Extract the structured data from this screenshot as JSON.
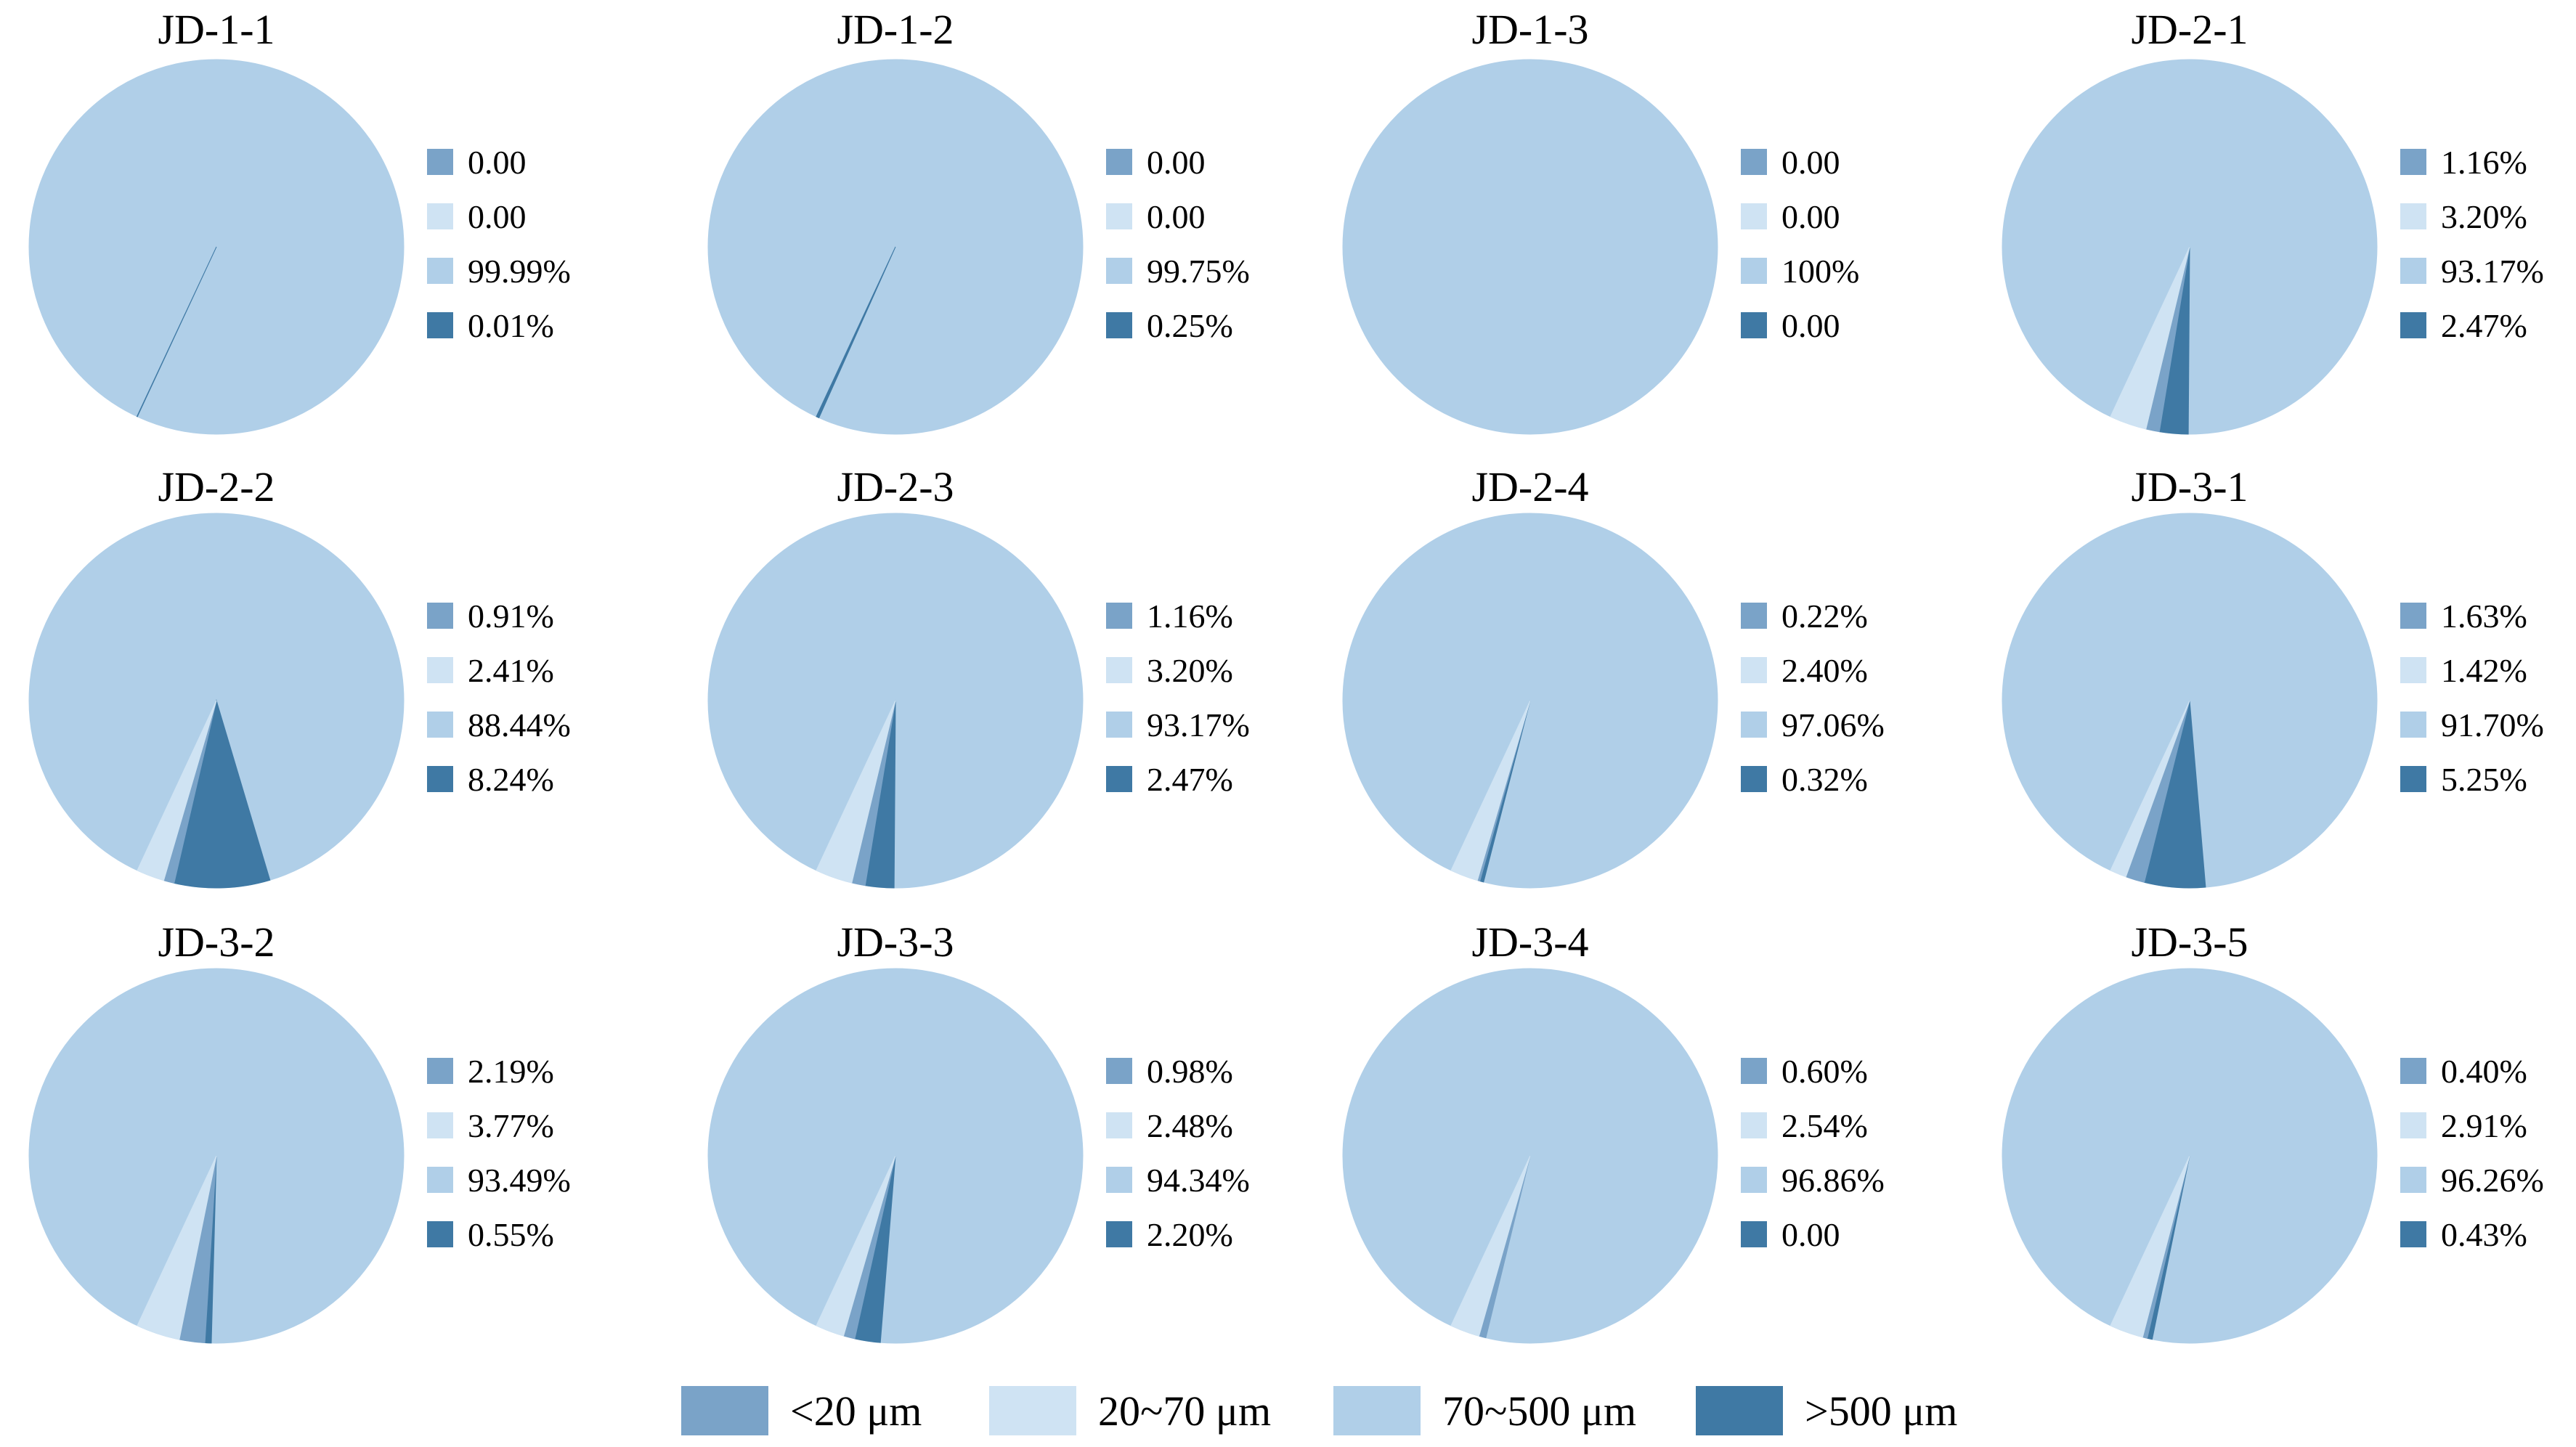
{
  "chart_data": {
    "type": "pie",
    "categories": [
      "<20 μm",
      "20~70 μm",
      "70~500 μm",
      ">500 μm"
    ],
    "colors": {
      "<20 μm": "#7aa3c8",
      "20~70 μm": "#cfe3f3",
      "70~500 μm": "#b0cfe8",
      ">500 μm": "#3f79a4"
    },
    "legend_placement": "bottom",
    "charts": [
      {
        "title": "JD-1-1",
        "values": [
          0.0,
          0.0,
          99.99,
          0.01
        ],
        "labels": [
          "0.00",
          "0.00",
          "99.99%",
          "0.01%"
        ]
      },
      {
        "title": "JD-1-2",
        "values": [
          0.0,
          0.0,
          99.75,
          0.25
        ],
        "labels": [
          "0.00",
          "0.00",
          "99.75%",
          "0.25%"
        ]
      },
      {
        "title": "JD-1-3",
        "values": [
          0.0,
          0.0,
          100,
          0.0
        ],
        "labels": [
          "0.00",
          "0.00",
          "100%",
          "0.00"
        ]
      },
      {
        "title": "JD-2-1",
        "values": [
          1.16,
          3.2,
          93.17,
          2.47
        ],
        "labels": [
          "1.16%",
          "3.20%",
          "93.17%",
          "2.47%"
        ]
      },
      {
        "title": "JD-2-2",
        "values": [
          0.91,
          2.41,
          88.44,
          8.24
        ],
        "labels": [
          "0.91%",
          "2.41%",
          "88.44%",
          "8.24%"
        ]
      },
      {
        "title": "JD-2-3",
        "values": [
          1.16,
          3.2,
          93.17,
          2.47
        ],
        "labels": [
          "1.16%",
          "3.20%",
          "93.17%",
          "2.47%"
        ]
      },
      {
        "title": "JD-2-4",
        "values": [
          0.22,
          2.4,
          97.06,
          0.32
        ],
        "labels": [
          "0.22%",
          "2.40%",
          "97.06%",
          "0.32%"
        ]
      },
      {
        "title": "JD-3-1",
        "values": [
          1.63,
          1.42,
          91.7,
          5.25
        ],
        "labels": [
          "1.63%",
          "1.42%",
          "91.70%",
          "5.25%"
        ]
      },
      {
        "title": "JD-3-2",
        "values": [
          2.19,
          3.77,
          93.49,
          0.55
        ],
        "labels": [
          "2.19%",
          "3.77%",
          "93.49%",
          "0.55%"
        ]
      },
      {
        "title": "JD-3-3",
        "values": [
          0.98,
          2.48,
          94.34,
          2.2
        ],
        "labels": [
          "0.98%",
          "2.48%",
          "94.34%",
          "2.20%"
        ]
      },
      {
        "title": "JD-3-4",
        "values": [
          0.6,
          2.54,
          96.86,
          0.0
        ],
        "labels": [
          "0.60%",
          "2.54%",
          "96.86%",
          "0.00"
        ]
      },
      {
        "title": "JD-3-5",
        "values": [
          0.4,
          2.91,
          96.26,
          0.43
        ],
        "labels": [
          "0.40%",
          "2.91%",
          "96.26%",
          "0.43%"
        ]
      }
    ]
  }
}
